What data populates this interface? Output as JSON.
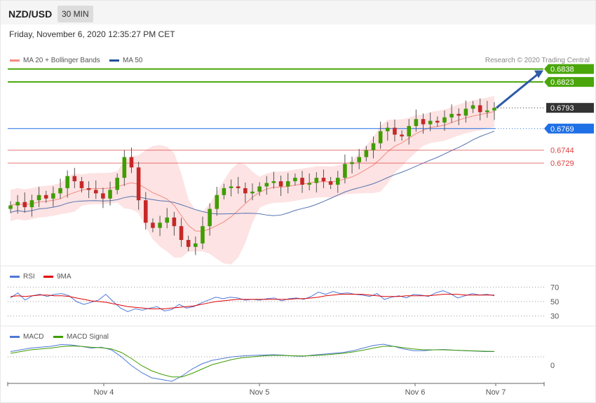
{
  "header": {
    "pair": "NZD/USD",
    "timeframe": "30 MIN",
    "date": "Friday, November 6, 2020 12:35:27 PM CET"
  },
  "legend": {
    "bb_label": "MA 20 + Bollinger Bands",
    "bb_color": "#f28b82",
    "ma50_label": "MA 50",
    "ma50_color": "#1f4e99",
    "credit": "Research © 2020 Trading Central"
  },
  "rsi_legend": {
    "rsi_label": "RSI",
    "rsi_color": "#4f78d8",
    "ma_label": "9MA",
    "ma_color": "#e00000"
  },
  "macd_legend": {
    "macd_label": "MACD",
    "macd_color": "#4f78d8",
    "signal_label": "MACD Signal",
    "signal_color": "#3f9d00"
  },
  "chart_data": [
    {
      "type": "candlestick",
      "title": "NZD/USD",
      "x_ticks": [
        "Nov 4",
        "Nov 5",
        "Nov 6",
        "Nov 7"
      ],
      "ylim": [
        0.661,
        0.6845
      ],
      "levels": [
        {
          "label": "0.6838",
          "value": 0.6838,
          "color": "#4aa60a",
          "kind": "resistance"
        },
        {
          "label": "0.6823",
          "value": 0.6823,
          "color": "#4aa60a",
          "kind": "resistance"
        },
        {
          "label": "0.6793",
          "value": 0.6793,
          "color": "#333333",
          "kind": "current"
        },
        {
          "label": "0.6769",
          "value": 0.6769,
          "color": "#1f6fe5",
          "kind": "pivot"
        },
        {
          "label": "0.6744",
          "value": 0.6744,
          "color": "#e04040",
          "kind": "support"
        },
        {
          "label": "0.6729",
          "value": 0.6729,
          "color": "#e04040",
          "kind": "support"
        }
      ],
      "close_approx": [
        0.668,
        0.6684,
        0.6678,
        0.6686,
        0.6692,
        0.6688,
        0.6694,
        0.67,
        0.6714,
        0.6708,
        0.67,
        0.6698,
        0.6694,
        0.6688,
        0.6698,
        0.6712,
        0.6736,
        0.6724,
        0.6686,
        0.666,
        0.6654,
        0.666,
        0.6666,
        0.6656,
        0.664,
        0.6632,
        0.6636,
        0.6656,
        0.6676,
        0.6692,
        0.67,
        0.6702,
        0.67,
        0.6694,
        0.6696,
        0.6702,
        0.6706,
        0.6708,
        0.6702,
        0.6708,
        0.6712,
        0.6704,
        0.6706,
        0.6712,
        0.6708,
        0.6704,
        0.6712,
        0.6728,
        0.673,
        0.6736,
        0.6744,
        0.6752,
        0.6766,
        0.677,
        0.6762,
        0.676,
        0.6772,
        0.678,
        0.6774,
        0.6778,
        0.6776,
        0.6782,
        0.6786,
        0.6784,
        0.6792,
        0.6796,
        0.6788,
        0.679,
        0.6793
      ]
    },
    {
      "type": "line",
      "title": "RSI",
      "y_ticks": [
        "70",
        "50",
        "30"
      ],
      "ylim": [
        20,
        80
      ],
      "series": [
        {
          "name": "RSI",
          "values": [
            55,
            62,
            52,
            58,
            60,
            57,
            60,
            61,
            58,
            50,
            46,
            49,
            52,
            60,
            50,
            41,
            36,
            40,
            38,
            41,
            43,
            37,
            39,
            46,
            41,
            43,
            48,
            52,
            56,
            54,
            56,
            55,
            52,
            53,
            52,
            54,
            55,
            51,
            54,
            55,
            53,
            57,
            63,
            60,
            64,
            61,
            62,
            60,
            59,
            57,
            61,
            53,
            56,
            58,
            55,
            60,
            59,
            57,
            62,
            65,
            61,
            55,
            58,
            61,
            59,
            60,
            58
          ],
          "color": "#4f78d8"
        },
        {
          "name": "9MA",
          "values": [
            57,
            58,
            57,
            58,
            59,
            59,
            58,
            58,
            57,
            55,
            53,
            51,
            50,
            49,
            47,
            45,
            43,
            42,
            41,
            40,
            40,
            40,
            41,
            42,
            43,
            44,
            46,
            48,
            50,
            51,
            52,
            53,
            53,
            53,
            53,
            53,
            53,
            53,
            53,
            54,
            54,
            55,
            56,
            58,
            59,
            60,
            60,
            60,
            60,
            59,
            58,
            57,
            57,
            57,
            58,
            58,
            58,
            58,
            59,
            60,
            60,
            60,
            59,
            59,
            59,
            59,
            59
          ],
          "color": "#e00000"
        }
      ]
    },
    {
      "type": "line",
      "title": "MACD",
      "y_ticks": [
        "0"
      ],
      "series": [
        {
          "name": "MACD",
          "values": [
            0.3,
            0.4,
            0.5,
            0.55,
            0.6,
            0.7,
            0.68,
            0.6,
            0.5,
            0.55,
            0.4,
            0.0,
            -0.5,
            -0.9,
            -1.2,
            -1.3,
            -1.4,
            -1.1,
            -0.7,
            -0.4,
            -0.2,
            -0.1,
            0.0,
            0.05,
            0.08,
            0.1,
            0.12,
            0.1,
            0.05,
            0.03,
            0.1,
            0.15,
            0.2,
            0.25,
            0.35,
            0.5,
            0.65,
            0.72,
            0.6,
            0.45,
            0.35,
            0.35,
            0.4,
            0.42,
            0.38,
            0.35,
            0.33,
            0.3,
            0.3
          ],
          "color": "#4f78d8"
        },
        {
          "name": "MACD Signal",
          "values": [
            0.2,
            0.3,
            0.4,
            0.45,
            0.5,
            0.58,
            0.62,
            0.6,
            0.55,
            0.52,
            0.45,
            0.25,
            -0.1,
            -0.5,
            -0.8,
            -1.0,
            -1.15,
            -1.15,
            -0.95,
            -0.7,
            -0.45,
            -0.3,
            -0.15,
            -0.05,
            0.0,
            0.05,
            0.08,
            0.08,
            0.06,
            0.05,
            0.07,
            0.1,
            0.15,
            0.2,
            0.28,
            0.38,
            0.5,
            0.6,
            0.6,
            0.52,
            0.45,
            0.4,
            0.4,
            0.4,
            0.38,
            0.36,
            0.34,
            0.32,
            0.31
          ],
          "color": "#3f9d00"
        }
      ]
    }
  ]
}
